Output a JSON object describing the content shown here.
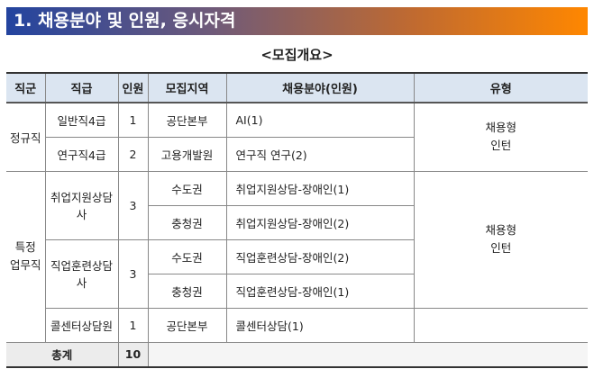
{
  "title": "1. 채용분야 및 인원, 응시자격",
  "subtitle": "<모집개요>",
  "headers": [
    "직군",
    "직급",
    "인원",
    "모집지역",
    "채용분야(인원)",
    "유형"
  ],
  "groups": {
    "regular": {
      "name": "정규직",
      "type": "채용형\n인턴",
      "rows": [
        {
          "grade": "일반직4급",
          "count": "1",
          "region": "공단본부",
          "field": "AI(1)"
        },
        {
          "grade": "연구직4급",
          "count": "2",
          "region": "고용개발원",
          "field": "연구직 연구(2)"
        }
      ]
    },
    "special": {
      "name": "특정\n업무직",
      "type": "채용형\n인턴",
      "job1": {
        "grade": "취업지원상담사",
        "count": "3",
        "rows": [
          {
            "region": "수도권",
            "field": "취업지원상담-장애인(1)"
          },
          {
            "region": "충청권",
            "field": "취업지원상담-장애인(2)"
          }
        ]
      },
      "job2": {
        "grade": "직업훈련상담사",
        "count": "3",
        "rows": [
          {
            "region": "수도권",
            "field": "직업훈련상담-장애인(2)"
          },
          {
            "region": "충청권",
            "field": "직업훈련상담-장애인(1)"
          }
        ]
      },
      "job3": {
        "grade": "콜센터상담원",
        "count": "1",
        "region": "공단본부",
        "field": "콜센터상담(1)"
      }
    }
  },
  "total": {
    "label": "총계",
    "count": "10"
  }
}
